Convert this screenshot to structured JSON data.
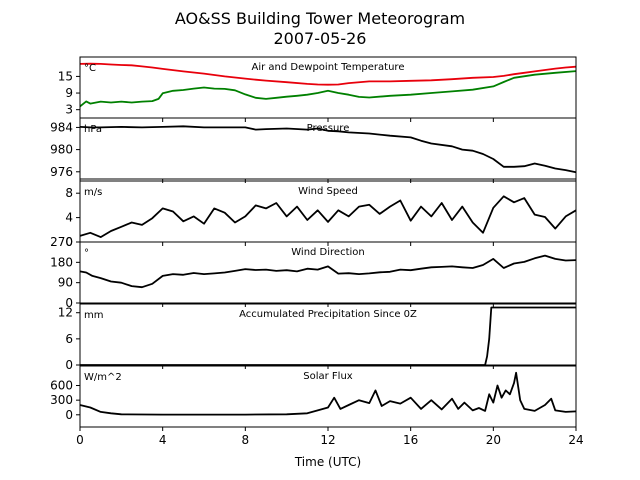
{
  "figure": {
    "title_line1": "AO&SS Building Tower Meteorogram",
    "title_line2": "2007-05-26",
    "xlabel": "Time (UTC)"
  },
  "chart_data": [
    {
      "type": "line",
      "title": "Air and Dewpoint Temperature",
      "unit_label": "°C",
      "xlim": [
        0,
        24
      ],
      "ylim": [
        0,
        22
      ],
      "yticks": [
        3,
        9,
        15
      ],
      "series": [
        {
          "color": "#e8000b",
          "x": [
            0,
            0.5,
            1,
            1.5,
            2,
            2.5,
            3,
            3.5,
            4,
            5,
            6,
            7,
            7.5,
            8,
            8.5,
            9,
            10,
            11,
            11.5,
            12,
            12.5,
            13,
            14,
            15,
            16,
            17,
            18,
            19,
            20,
            20.5,
            21,
            21.5,
            22,
            22.5,
            23,
            23.5,
            24
          ],
          "y": [
            19.5,
            19.6,
            19.5,
            19.3,
            19.1,
            19.0,
            18.6,
            18.2,
            17.7,
            16.8,
            16.0,
            15.0,
            14.6,
            14.2,
            13.8,
            13.5,
            12.9,
            12.3,
            12.1,
            12.0,
            12.1,
            12.6,
            13.2,
            13.2,
            13.4,
            13.6,
            14.0,
            14.5,
            14.8,
            15.2,
            15.8,
            16.3,
            16.8,
            17.3,
            17.8,
            18.2,
            18.5
          ]
        },
        {
          "color": "#008000",
          "x": [
            0,
            0.3,
            0.5,
            1,
            1.5,
            2,
            2.5,
            3,
            3.5,
            3.8,
            4,
            4.5,
            5,
            5.5,
            6,
            6.5,
            7,
            7.5,
            8,
            8.5,
            9,
            9.5,
            10,
            10.5,
            11,
            11.5,
            12,
            12.5,
            13,
            13.5,
            14,
            15,
            16,
            17,
            18,
            19,
            20,
            20.5,
            21,
            22,
            23,
            24
          ],
          "y": [
            4.2,
            6.0,
            5.2,
            5.9,
            5.6,
            5.9,
            5.6,
            5.9,
            6.1,
            6.9,
            8.9,
            9.8,
            10.1,
            10.6,
            11.0,
            10.6,
            10.5,
            10.0,
            8.5,
            7.3,
            6.9,
            7.3,
            7.7,
            8.0,
            8.4,
            9.0,
            9.8,
            9.0,
            8.4,
            7.6,
            7.4,
            8.0,
            8.4,
            9.0,
            9.6,
            10.2,
            11.4,
            13.0,
            14.5,
            15.6,
            16.3,
            16.9
          ]
        }
      ]
    },
    {
      "type": "line",
      "title": "Pressure",
      "unit_label": "hPa",
      "xlim": [
        0,
        24
      ],
      "ylim": [
        974.7,
        985.7
      ],
      "yticks": [
        976,
        980,
        984
      ],
      "series": [
        {
          "color": "#000000",
          "x": [
            0,
            0.5,
            1,
            2,
            3,
            4,
            5,
            6,
            7,
            8,
            8.5,
            9,
            10,
            11,
            11.5,
            12,
            12.5,
            13,
            14,
            15,
            16,
            16.5,
            17,
            18,
            18.5,
            19,
            19.5,
            20,
            20.5,
            21,
            21.5,
            22,
            22.5,
            23,
            23.5,
            24
          ],
          "y": [
            984.1,
            984.0,
            984.0,
            984.1,
            984.0,
            984.1,
            984.2,
            984.0,
            984.0,
            984.0,
            983.6,
            983.7,
            983.8,
            983.6,
            983.8,
            983.4,
            983.3,
            983.1,
            982.9,
            982.5,
            982.2,
            981.6,
            981.1,
            980.6,
            980.0,
            979.8,
            979.2,
            978.3,
            976.9,
            976.9,
            977.0,
            977.5,
            977.1,
            976.6,
            976.3,
            975.9
          ]
        }
      ]
    },
    {
      "type": "line",
      "title": "Wind Speed",
      "unit_label": "m/s",
      "xlim": [
        0,
        24
      ],
      "ylim": [
        0,
        10
      ],
      "yticks": [
        0,
        4,
        8
      ],
      "series": [
        {
          "color": "#000000",
          "x": [
            0,
            0.5,
            1,
            1.5,
            2,
            2.5,
            3,
            3.5,
            4,
            4.5,
            5,
            5.5,
            6,
            6.5,
            7,
            7.5,
            8,
            8.5,
            9,
            9.5,
            10,
            10.5,
            11,
            11.5,
            12,
            12.5,
            13,
            13.5,
            14,
            14.5,
            15,
            15.5,
            16,
            16.5,
            17,
            17.5,
            18,
            18.5,
            19,
            19.5,
            20,
            20.5,
            21,
            21.5,
            22,
            22.5,
            23,
            23.5,
            24
          ],
          "y": [
            1.0,
            1.5,
            0.8,
            1.8,
            2.5,
            3.2,
            2.8,
            3.9,
            5.5,
            5.0,
            3.4,
            4.2,
            3.0,
            5.5,
            4.8,
            3.2,
            4.2,
            6.0,
            5.5,
            6.4,
            4.2,
            5.8,
            3.6,
            5.2,
            3.3,
            5.2,
            4.2,
            5.8,
            6.1,
            4.6,
            5.8,
            6.8,
            3.5,
            5.8,
            4.2,
            6.4,
            3.6,
            5.8,
            3.2,
            1.5,
            5.6,
            7.5,
            6.5,
            7.2,
            4.5,
            4.1,
            2.2,
            4.2,
            5.2
          ]
        }
      ]
    },
    {
      "type": "line",
      "title": "Wind Direction",
      "unit_label": "°",
      "xlim": [
        0,
        24
      ],
      "ylim": [
        0,
        270
      ],
      "yticks": [
        0,
        90,
        180,
        270
      ],
      "series": [
        {
          "color": "#000000",
          "x": [
            0,
            0.3,
            0.6,
            1,
            1.5,
            2,
            2.5,
            3,
            3.5,
            4,
            4.5,
            5,
            5.5,
            6,
            6.5,
            7,
            7.5,
            8,
            8.5,
            9,
            9.5,
            10,
            10.5,
            11,
            11.5,
            12,
            12.5,
            13,
            13.5,
            14,
            14.5,
            15,
            15.5,
            16,
            16.5,
            17,
            17.5,
            18,
            18.5,
            19,
            19.5,
            20,
            20.5,
            21,
            21.5,
            22,
            22.5,
            23,
            23.5,
            24
          ],
          "y": [
            140,
            135,
            120,
            110,
            95,
            90,
            75,
            70,
            85,
            120,
            128,
            125,
            133,
            128,
            131,
            135,
            142,
            150,
            146,
            148,
            142,
            145,
            140,
            152,
            148,
            162,
            130,
            132,
            128,
            131,
            136,
            138,
            148,
            145,
            152,
            158,
            160,
            162,
            158,
            155,
            168,
            195,
            155,
            175,
            182,
            198,
            210,
            195,
            188,
            190
          ]
        }
      ]
    },
    {
      "type": "line",
      "title": "Accumulated Precipitation Since 0Z",
      "unit_label": "mm",
      "xlim": [
        0,
        24
      ],
      "ylim": [
        0,
        14
      ],
      "yticks": [
        0,
        6,
        12
      ],
      "series": [
        {
          "color": "#000000",
          "x": [
            0,
            19.6,
            19.7,
            19.8,
            19.9,
            24
          ],
          "y": [
            0,
            0,
            2,
            6,
            13.2,
            13.2
          ]
        }
      ]
    },
    {
      "type": "line",
      "title": "Solar Flux",
      "unit_label": "W/m^2",
      "xlim": [
        0,
        24
      ],
      "ylim": [
        -250,
        1000
      ],
      "yticks": [
        0,
        300,
        600
      ],
      "series": [
        {
          "color": "#000000",
          "x": [
            0,
            0.5,
            1,
            1.5,
            2,
            4,
            6,
            8,
            10,
            11,
            11.5,
            12,
            12.3,
            12.6,
            13,
            13.5,
            14,
            14.3,
            14.6,
            15,
            15.5,
            16,
            16.5,
            17,
            17.5,
            18,
            18.3,
            18.6,
            19,
            19.3,
            19.6,
            19.8,
            20,
            20.2,
            20.4,
            20.6,
            20.8,
            21,
            21.1,
            21.3,
            21.5,
            22,
            22.5,
            22.8,
            23,
            23.5,
            24
          ],
          "y": [
            200,
            150,
            60,
            30,
            10,
            5,
            5,
            5,
            10,
            30,
            90,
            150,
            350,
            120,
            200,
            300,
            240,
            500,
            180,
            280,
            230,
            350,
            120,
            300,
            110,
            330,
            120,
            250,
            90,
            140,
            80,
            420,
            250,
            600,
            350,
            500,
            420,
            650,
            860,
            300,
            120,
            80,
            200,
            330,
            90,
            60,
            70
          ]
        }
      ]
    }
  ],
  "xaxis": {
    "ticks": [
      0,
      4,
      8,
      12,
      16,
      20,
      24
    ]
  }
}
